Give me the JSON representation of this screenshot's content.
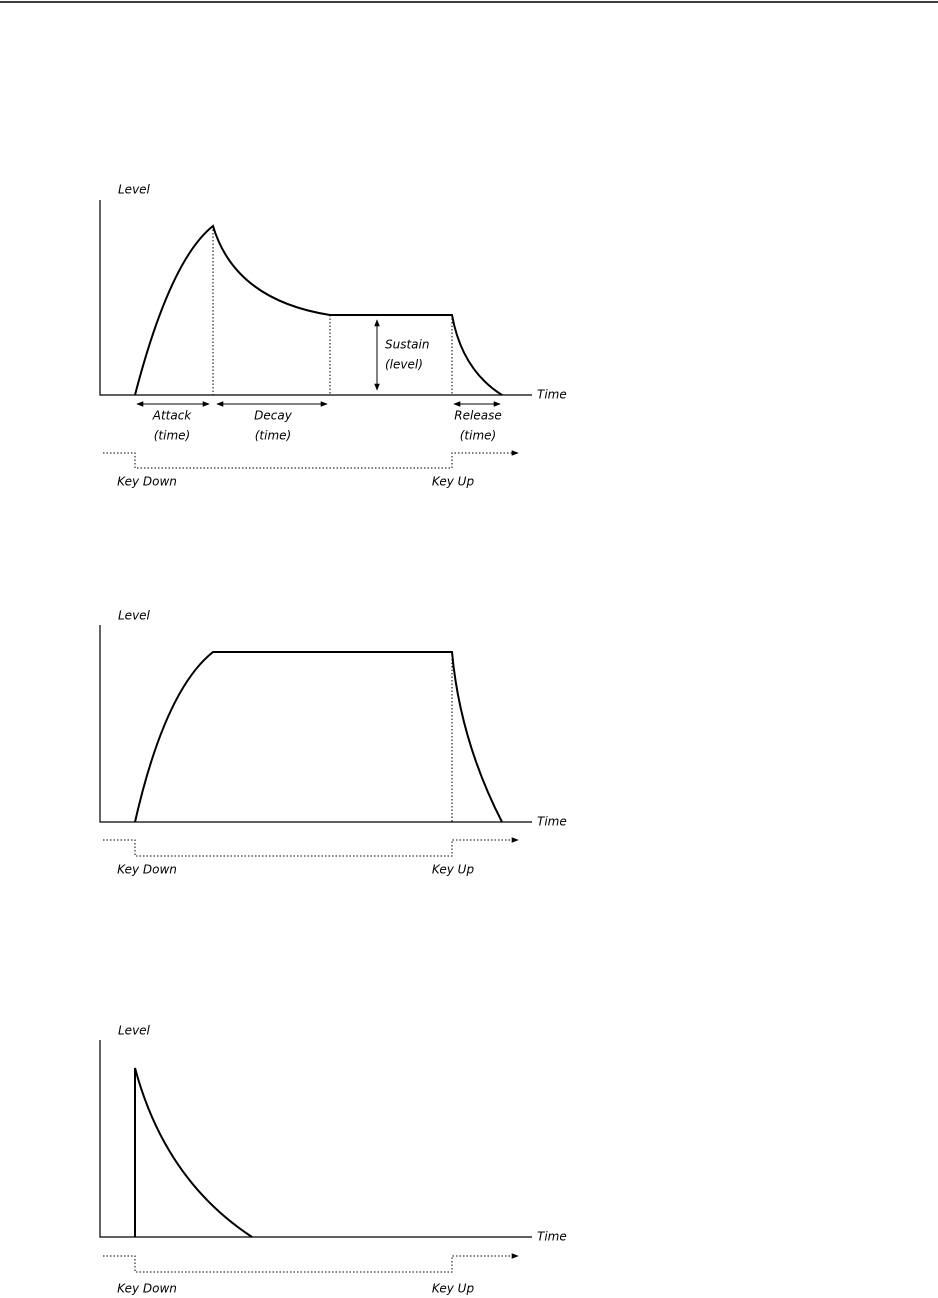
{
  "diagrams": [
    {
      "level_label": "Level",
      "time_label": "Time",
      "key_down": "Key Down",
      "key_up": "Key Up",
      "stages": {
        "attack": [
          "Attack",
          "(time)"
        ],
        "decay": [
          "Decay",
          "(time)"
        ],
        "sustain": [
          "Sustain",
          "(level)"
        ],
        "release": [
          "Release",
          "(time)"
        ]
      }
    },
    {
      "level_label": "Level",
      "time_label": "Time",
      "key_down": "Key Down",
      "key_up": "Key Up"
    },
    {
      "level_label": "Level",
      "time_label": "Time",
      "key_down": "Key Down",
      "key_up": "Key Up"
    }
  ]
}
